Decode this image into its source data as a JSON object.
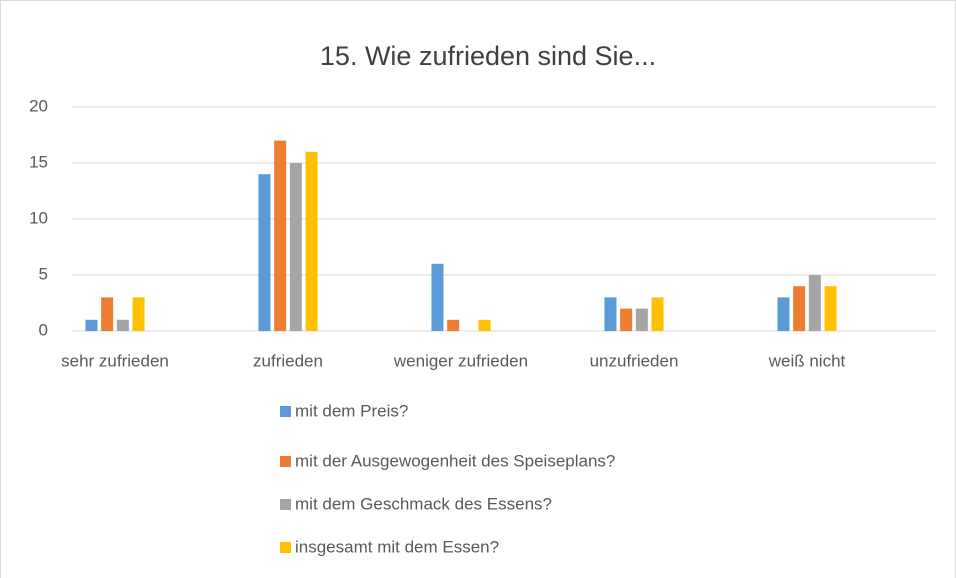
{
  "chart_data": {
    "type": "bar",
    "title": "15. Wie zufrieden sind Sie...",
    "categories": [
      "sehr zufrieden",
      "zufrieden",
      "weniger zufrieden",
      "unzufrieden",
      "weiß nicht"
    ],
    "series": [
      {
        "name": "mit dem Preis?",
        "color": "#5b9bd5",
        "values": [
          1,
          14,
          6,
          3,
          3
        ]
      },
      {
        "name": "mit der Ausgewogenheit des Speiseplans?",
        "color": "#ed7d31",
        "values": [
          3,
          17,
          1,
          2,
          4
        ]
      },
      {
        "name": "mit dem Geschmack des Essens?",
        "color": "#a5a5a5",
        "values": [
          1,
          15,
          0,
          2,
          5
        ]
      },
      {
        "name": "insgesamt mit dem Essen?",
        "color": "#ffc000",
        "values": [
          3,
          16,
          1,
          3,
          4
        ]
      }
    ],
    "ylim": [
      0,
      20
    ],
    "yticks": [
      0,
      5,
      10,
      15,
      20
    ],
    "grid": true,
    "legend": "bottom"
  }
}
